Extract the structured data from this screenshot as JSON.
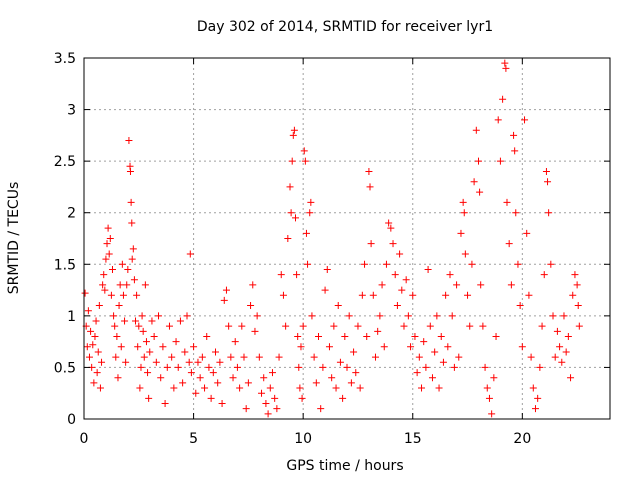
{
  "chart_data": {
    "type": "scatter",
    "title": "Day 302 of 2014, SRMTID for receiver lyr1",
    "xlabel": "GPS time / hours",
    "ylabel": "SRMTID / TECUs",
    "xlim": [
      0,
      24
    ],
    "ylim": [
      0,
      3.5
    ],
    "xticks": [
      0,
      5,
      10,
      15,
      20
    ],
    "yticks": [
      0,
      0.5,
      1,
      1.5,
      2,
      2.5,
      3,
      3.5
    ],
    "xtick_labels": [
      "0",
      "5",
      "10",
      "15",
      "20"
    ],
    "ytick_labels": [
      "0",
      "0.5",
      "1",
      "1.5",
      "2",
      "2.5",
      "3",
      "3.5"
    ],
    "grid": true,
    "marker": "+",
    "color": "#ff0000",
    "series": [
      {
        "name": "lyr1",
        "points": [
          [
            0.05,
            1.22
          ],
          [
            0.1,
            0.9
          ],
          [
            0.15,
            0.7
          ],
          [
            0.2,
            1.05
          ],
          [
            0.25,
            0.6
          ],
          [
            0.3,
            0.85
          ],
          [
            0.35,
            0.5
          ],
          [
            0.4,
            0.72
          ],
          [
            0.45,
            0.35
          ],
          [
            0.5,
            0.8
          ],
          [
            0.55,
            0.95
          ],
          [
            0.6,
            0.45
          ],
          [
            0.65,
            0.65
          ],
          [
            0.7,
            1.1
          ],
          [
            0.75,
            0.3
          ],
          [
            0.8,
            0.55
          ],
          [
            0.85,
            1.3
          ],
          [
            0.9,
            1.4
          ],
          [
            0.95,
            1.25
          ],
          [
            1.0,
            1.55
          ],
          [
            1.05,
            1.7
          ],
          [
            1.1,
            1.85
          ],
          [
            1.15,
            1.6
          ],
          [
            1.2,
            1.75
          ],
          [
            1.25,
            1.2
          ],
          [
            1.3,
            1.45
          ],
          [
            1.35,
            1.0
          ],
          [
            1.4,
            0.9
          ],
          [
            1.45,
            0.6
          ],
          [
            1.5,
            0.8
          ],
          [
            1.55,
            0.4
          ],
          [
            1.6,
            1.1
          ],
          [
            1.65,
            1.3
          ],
          [
            1.7,
            0.7
          ],
          [
            1.75,
            1.5
          ],
          [
            1.8,
            1.2
          ],
          [
            1.85,
            0.95
          ],
          [
            1.9,
            0.55
          ],
          [
            1.95,
            1.3
          ],
          [
            2.0,
            1.45
          ],
          [
            2.05,
            2.7
          ],
          [
            2.1,
            2.45
          ],
          [
            2.12,
            2.4
          ],
          [
            2.15,
            2.1
          ],
          [
            2.18,
            1.9
          ],
          [
            2.2,
            1.55
          ],
          [
            2.25,
            1.65
          ],
          [
            2.3,
            1.35
          ],
          [
            2.35,
            0.95
          ],
          [
            2.4,
            1.2
          ],
          [
            2.45,
            0.7
          ],
          [
            2.5,
            0.9
          ],
          [
            2.55,
            0.3
          ],
          [
            2.6,
            0.5
          ],
          [
            2.65,
            1.0
          ],
          [
            2.7,
            0.85
          ],
          [
            2.75,
            0.6
          ],
          [
            2.8,
            1.3
          ],
          [
            2.85,
            0.75
          ],
          [
            2.9,
            0.45
          ],
          [
            2.95,
            0.2
          ],
          [
            3.0,
            0.65
          ],
          [
            3.1,
            0.95
          ],
          [
            3.2,
            0.8
          ],
          [
            3.3,
            0.55
          ],
          [
            3.4,
            1.0
          ],
          [
            3.5,
            0.4
          ],
          [
            3.6,
            0.7
          ],
          [
            3.7,
            0.15
          ],
          [
            3.8,
            0.5
          ],
          [
            3.9,
            0.9
          ],
          [
            4.0,
            0.6
          ],
          [
            4.1,
            0.3
          ],
          [
            4.2,
            0.75
          ],
          [
            4.3,
            0.5
          ],
          [
            4.4,
            0.95
          ],
          [
            4.5,
            0.35
          ],
          [
            4.6,
            0.65
          ],
          [
            4.7,
            1.0
          ],
          [
            4.8,
            0.55
          ],
          [
            4.85,
            1.6
          ],
          [
            4.9,
            0.45
          ],
          [
            5.0,
            0.7
          ],
          [
            5.1,
            0.25
          ],
          [
            5.2,
            0.55
          ],
          [
            5.3,
            0.4
          ],
          [
            5.4,
            0.6
          ],
          [
            5.5,
            0.3
          ],
          [
            5.6,
            0.8
          ],
          [
            5.7,
            0.5
          ],
          [
            5.8,
            0.2
          ],
          [
            5.9,
            0.45
          ],
          [
            6.0,
            0.65
          ],
          [
            6.1,
            0.35
          ],
          [
            6.2,
            0.55
          ],
          [
            6.3,
            0.15
          ],
          [
            6.4,
            1.15
          ],
          [
            6.5,
            1.25
          ],
          [
            6.6,
            0.9
          ],
          [
            6.7,
            0.6
          ],
          [
            6.8,
            0.4
          ],
          [
            6.9,
            0.75
          ],
          [
            7.0,
            0.5
          ],
          [
            7.1,
            0.3
          ],
          [
            7.2,
            0.9
          ],
          [
            7.3,
            0.6
          ],
          [
            7.4,
            0.1
          ],
          [
            7.5,
            0.35
          ],
          [
            7.6,
            1.1
          ],
          [
            7.7,
            1.3
          ],
          [
            7.8,
            0.85
          ],
          [
            7.9,
            1.0
          ],
          [
            8.0,
            0.6
          ],
          [
            8.1,
            0.25
          ],
          [
            8.2,
            0.4
          ],
          [
            8.3,
            0.15
          ],
          [
            8.4,
            0.05
          ],
          [
            8.5,
            0.3
          ],
          [
            8.6,
            0.45
          ],
          [
            8.7,
            0.2
          ],
          [
            8.8,
            0.1
          ],
          [
            8.9,
            0.6
          ],
          [
            9.0,
            1.4
          ],
          [
            9.1,
            1.2
          ],
          [
            9.2,
            0.9
          ],
          [
            9.3,
            1.75
          ],
          [
            9.4,
            2.25
          ],
          [
            9.45,
            2.0
          ],
          [
            9.5,
            2.5
          ],
          [
            9.55,
            2.75
          ],
          [
            9.6,
            2.8
          ],
          [
            9.65,
            1.95
          ],
          [
            9.7,
            1.4
          ],
          [
            9.75,
            0.8
          ],
          [
            9.8,
            0.5
          ],
          [
            9.85,
            0.3
          ],
          [
            9.9,
            0.7
          ],
          [
            9.95,
            0.2
          ],
          [
            10.0,
            0.9
          ],
          [
            10.05,
            2.6
          ],
          [
            10.1,
            2.5
          ],
          [
            10.15,
            1.8
          ],
          [
            10.2,
            1.5
          ],
          [
            10.3,
            2.0
          ],
          [
            10.35,
            2.1
          ],
          [
            10.4,
            1.0
          ],
          [
            10.5,
            0.6
          ],
          [
            10.6,
            0.35
          ],
          [
            10.7,
            0.8
          ],
          [
            10.8,
            0.1
          ],
          [
            10.9,
            0.5
          ],
          [
            11.0,
            1.25
          ],
          [
            11.1,
            1.45
          ],
          [
            11.2,
            0.7
          ],
          [
            11.3,
            0.4
          ],
          [
            11.4,
            0.9
          ],
          [
            11.5,
            0.3
          ],
          [
            11.6,
            1.1
          ],
          [
            11.7,
            0.55
          ],
          [
            11.8,
            0.2
          ],
          [
            11.9,
            0.8
          ],
          [
            12.0,
            0.5
          ],
          [
            12.1,
            1.0
          ],
          [
            12.2,
            0.35
          ],
          [
            12.3,
            0.65
          ],
          [
            12.4,
            0.45
          ],
          [
            12.5,
            0.9
          ],
          [
            12.6,
            0.3
          ],
          [
            12.7,
            1.2
          ],
          [
            12.8,
            1.5
          ],
          [
            12.9,
            0.8
          ],
          [
            13.0,
            2.4
          ],
          [
            13.05,
            2.25
          ],
          [
            13.1,
            1.7
          ],
          [
            13.2,
            1.2
          ],
          [
            13.3,
            0.6
          ],
          [
            13.4,
            0.85
          ],
          [
            13.5,
            1.0
          ],
          [
            13.6,
            1.3
          ],
          [
            13.7,
            0.7
          ],
          [
            13.8,
            1.5
          ],
          [
            13.9,
            1.9
          ],
          [
            14.0,
            1.85
          ],
          [
            14.1,
            1.7
          ],
          [
            14.2,
            1.4
          ],
          [
            14.3,
            1.1
          ],
          [
            14.4,
            1.6
          ],
          [
            14.5,
            1.25
          ],
          [
            14.6,
            0.9
          ],
          [
            14.7,
            1.35
          ],
          [
            14.8,
            1.0
          ],
          [
            14.9,
            0.7
          ],
          [
            15.0,
            1.2
          ],
          [
            15.1,
            0.8
          ],
          [
            15.2,
            0.45
          ],
          [
            15.3,
            0.6
          ],
          [
            15.4,
            0.3
          ],
          [
            15.5,
            0.75
          ],
          [
            15.6,
            0.5
          ],
          [
            15.7,
            1.45
          ],
          [
            15.8,
            0.9
          ],
          [
            15.9,
            0.4
          ],
          [
            16.0,
            0.65
          ],
          [
            16.1,
            1.0
          ],
          [
            16.2,
            0.3
          ],
          [
            16.3,
            0.8
          ],
          [
            16.4,
            0.55
          ],
          [
            16.5,
            1.2
          ],
          [
            16.6,
            0.7
          ],
          [
            16.7,
            1.4
          ],
          [
            16.8,
            1.0
          ],
          [
            16.9,
            0.5
          ],
          [
            17.0,
            1.3
          ],
          [
            17.1,
            0.6
          ],
          [
            17.2,
            1.8
          ],
          [
            17.3,
            2.1
          ],
          [
            17.35,
            2.0
          ],
          [
            17.4,
            1.6
          ],
          [
            17.5,
            1.2
          ],
          [
            17.6,
            0.9
          ],
          [
            17.7,
            1.5
          ],
          [
            17.8,
            2.3
          ],
          [
            17.9,
            2.8
          ],
          [
            18.0,
            2.5
          ],
          [
            18.05,
            2.2
          ],
          [
            18.1,
            1.3
          ],
          [
            18.2,
            0.9
          ],
          [
            18.3,
            0.5
          ],
          [
            18.4,
            0.3
          ],
          [
            18.5,
            0.2
          ],
          [
            18.6,
            0.05
          ],
          [
            18.7,
            0.4
          ],
          [
            18.8,
            0.8
          ],
          [
            18.9,
            2.9
          ],
          [
            19.0,
            2.5
          ],
          [
            19.1,
            3.1
          ],
          [
            19.2,
            3.45
          ],
          [
            19.25,
            3.4
          ],
          [
            19.3,
            2.1
          ],
          [
            19.4,
            1.7
          ],
          [
            19.5,
            1.3
          ],
          [
            19.6,
            2.75
          ],
          [
            19.65,
            2.6
          ],
          [
            19.7,
            2.0
          ],
          [
            19.8,
            1.5
          ],
          [
            19.9,
            1.1
          ],
          [
            20.0,
            0.7
          ],
          [
            20.1,
            2.9
          ],
          [
            20.2,
            1.8
          ],
          [
            20.3,
            1.2
          ],
          [
            20.4,
            0.6
          ],
          [
            20.5,
            0.3
          ],
          [
            20.6,
            0.1
          ],
          [
            20.7,
            0.2
          ],
          [
            20.8,
            0.5
          ],
          [
            20.9,
            0.9
          ],
          [
            21.0,
            1.4
          ],
          [
            21.1,
            2.4
          ],
          [
            21.15,
            2.3
          ],
          [
            21.2,
            2.0
          ],
          [
            21.3,
            1.5
          ],
          [
            21.4,
            1.0
          ],
          [
            21.5,
            0.6
          ],
          [
            21.6,
            0.85
          ],
          [
            21.7,
            0.7
          ],
          [
            21.8,
            0.55
          ],
          [
            21.9,
            1.0
          ],
          [
            22.0,
            0.65
          ],
          [
            22.1,
            0.8
          ],
          [
            22.2,
            0.4
          ],
          [
            22.3,
            1.2
          ],
          [
            22.4,
            1.4
          ],
          [
            22.5,
            1.3
          ],
          [
            22.55,
            1.1
          ],
          [
            22.6,
            0.9
          ]
        ]
      }
    ]
  }
}
